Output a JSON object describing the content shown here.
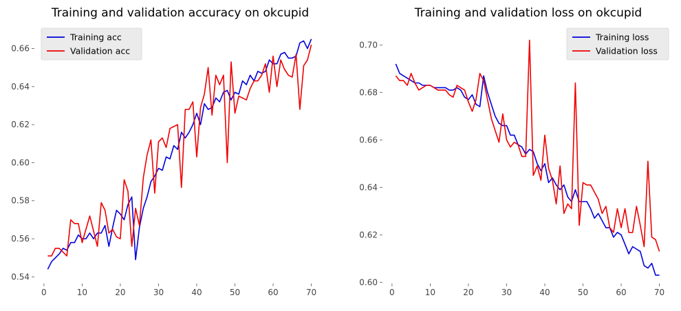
{
  "chart_data": [
    {
      "type": "line",
      "title": "Training and validation accuracy on okcupid",
      "xlabel": "",
      "ylabel": "",
      "xlim": [
        -2.5,
        73.5
      ],
      "ylim": [
        0.5365,
        0.6725
      ],
      "xticks": [
        0,
        10,
        20,
        30,
        40,
        50,
        60,
        70
      ],
      "yticks": [
        0.54,
        0.56,
        0.58,
        0.6,
        0.62,
        0.64,
        0.66
      ],
      "xtick_labels": [
        "0",
        "10",
        "20",
        "30",
        "40",
        "50",
        "60",
        "70"
      ],
      "ytick_labels": [
        "0.54",
        "0.56",
        "0.58",
        "0.60",
        "0.62",
        "0.64",
        "0.66"
      ],
      "grid": false,
      "legend_position": "upper-left",
      "x": [
        1,
        2,
        3,
        4,
        5,
        6,
        7,
        8,
        9,
        10,
        11,
        12,
        13,
        14,
        15,
        16,
        17,
        18,
        19,
        20,
        21,
        22,
        23,
        24,
        25,
        26,
        27,
        28,
        29,
        30,
        31,
        32,
        33,
        34,
        35,
        36,
        37,
        38,
        39,
        40,
        41,
        42,
        43,
        44,
        45,
        46,
        47,
        48,
        49,
        50,
        51,
        52,
        53,
        54,
        55,
        56,
        57,
        58,
        59,
        60,
        61,
        62,
        63,
        64,
        65,
        66,
        67,
        68,
        69,
        70
      ],
      "series": [
        {
          "name": "Training acc",
          "color": "#0000dd",
          "values": [
            0.544,
            0.548,
            0.55,
            0.552,
            0.555,
            0.554,
            0.558,
            0.558,
            0.562,
            0.56,
            0.56,
            0.563,
            0.56,
            0.563,
            0.563,
            0.567,
            0.556,
            0.566,
            0.575,
            0.573,
            0.57,
            0.578,
            0.582,
            0.549,
            0.566,
            0.576,
            0.582,
            0.59,
            0.593,
            0.597,
            0.596,
            0.603,
            0.602,
            0.609,
            0.607,
            0.616,
            0.613,
            0.616,
            0.62,
            0.626,
            0.62,
            0.631,
            0.628,
            0.629,
            0.634,
            0.632,
            0.637,
            0.638,
            0.633,
            0.637,
            0.636,
            0.643,
            0.641,
            0.646,
            0.643,
            0.648,
            0.647,
            0.648,
            0.654,
            0.652,
            0.652,
            0.657,
            0.658,
            0.655,
            0.655,
            0.656,
            0.663,
            0.664,
            0.66,
            0.665
          ]
        },
        {
          "name": "Validation acc",
          "color": "#ee0000",
          "values": [
            0.551,
            0.551,
            0.555,
            0.555,
            0.553,
            0.551,
            0.57,
            0.568,
            0.568,
            0.558,
            0.565,
            0.572,
            0.564,
            0.556,
            0.579,
            0.575,
            0.563,
            0.565,
            0.561,
            0.56,
            0.591,
            0.585,
            0.556,
            0.576,
            0.567,
            0.592,
            0.604,
            0.612,
            0.584,
            0.611,
            0.613,
            0.608,
            0.618,
            0.619,
            0.62,
            0.587,
            0.628,
            0.628,
            0.632,
            0.603,
            0.629,
            0.636,
            0.65,
            0.625,
            0.646,
            0.641,
            0.646,
            0.6,
            0.653,
            0.626,
            0.635,
            0.634,
            0.633,
            0.639,
            0.643,
            0.643,
            0.646,
            0.652,
            0.637,
            0.656,
            0.64,
            0.654,
            0.649,
            0.646,
            0.645,
            0.657,
            0.628,
            0.651,
            0.654,
            0.662
          ]
        }
      ]
    },
    {
      "type": "line",
      "title": "Training and validation loss on okcupid",
      "xlabel": "",
      "ylabel": "",
      "xlim": [
        -2.5,
        73.5
      ],
      "ylim": [
        0.5995,
        0.7085
      ],
      "xticks": [
        0,
        10,
        20,
        30,
        40,
        50,
        60,
        70
      ],
      "yticks": [
        0.6,
        0.62,
        0.64,
        0.66,
        0.68,
        0.7
      ],
      "xtick_labels": [
        "0",
        "10",
        "20",
        "30",
        "40",
        "50",
        "60",
        "70"
      ],
      "ytick_labels": [
        "0.60",
        "0.62",
        "0.64",
        "0.66",
        "0.68",
        "0.70"
      ],
      "grid": false,
      "legend_position": "upper-right",
      "x": [
        1,
        2,
        3,
        4,
        5,
        6,
        7,
        8,
        9,
        10,
        11,
        12,
        13,
        14,
        15,
        16,
        17,
        18,
        19,
        20,
        21,
        22,
        23,
        24,
        25,
        26,
        27,
        28,
        29,
        30,
        31,
        32,
        33,
        34,
        35,
        36,
        37,
        38,
        39,
        40,
        41,
        42,
        43,
        44,
        45,
        46,
        47,
        48,
        49,
        50,
        51,
        52,
        53,
        54,
        55,
        56,
        57,
        58,
        59,
        60,
        61,
        62,
        63,
        64,
        65,
        66,
        67,
        68,
        69,
        70
      ],
      "series": [
        {
          "name": "Training loss",
          "color": "#0000dd",
          "values": [
            0.692,
            0.688,
            0.687,
            0.686,
            0.685,
            0.684,
            0.684,
            0.683,
            0.683,
            0.683,
            0.682,
            0.682,
            0.682,
            0.682,
            0.681,
            0.681,
            0.682,
            0.681,
            0.678,
            0.677,
            0.679,
            0.675,
            0.674,
            0.687,
            0.68,
            0.675,
            0.67,
            0.667,
            0.666,
            0.666,
            0.662,
            0.662,
            0.658,
            0.657,
            0.654,
            0.656,
            0.655,
            0.65,
            0.647,
            0.65,
            0.642,
            0.644,
            0.641,
            0.639,
            0.641,
            0.636,
            0.634,
            0.639,
            0.634,
            0.634,
            0.634,
            0.631,
            0.627,
            0.629,
            0.626,
            0.623,
            0.623,
            0.619,
            0.621,
            0.62,
            0.616,
            0.612,
            0.615,
            0.614,
            0.613,
            0.607,
            0.606,
            0.608,
            0.603,
            0.603
          ]
        },
        {
          "name": "Validation loss",
          "color": "#ee0000",
          "values": [
            0.687,
            0.685,
            0.685,
            0.683,
            0.688,
            0.684,
            0.681,
            0.682,
            0.683,
            0.683,
            0.682,
            0.681,
            0.681,
            0.681,
            0.679,
            0.678,
            0.683,
            0.682,
            0.681,
            0.676,
            0.672,
            0.677,
            0.688,
            0.685,
            0.677,
            0.669,
            0.664,
            0.659,
            0.671,
            0.66,
            0.657,
            0.659,
            0.658,
            0.653,
            0.653,
            0.702,
            0.645,
            0.649,
            0.643,
            0.662,
            0.648,
            0.643,
            0.633,
            0.649,
            0.629,
            0.633,
            0.631,
            0.684,
            0.624,
            0.642,
            0.641,
            0.641,
            0.638,
            0.635,
            0.629,
            0.632,
            0.623,
            0.621,
            0.631,
            0.623,
            0.631,
            0.621,
            0.621,
            0.632,
            0.624,
            0.615,
            0.651,
            0.619,
            0.618,
            0.613
          ]
        }
      ]
    }
  ]
}
